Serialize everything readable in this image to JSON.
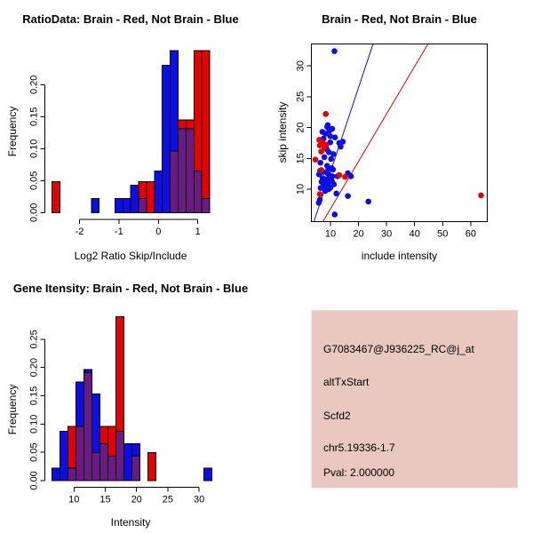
{
  "colors": {
    "red": "#e60000",
    "blue": "#0d0de6",
    "overlap": "#6a1b82",
    "axis": "#000000",
    "info_bg": "#e9c8c1",
    "black": "#000000",
    "pval_red": "#dd3333"
  },
  "chart_data": [
    {
      "type": "bar",
      "panel": "top-left",
      "title": "RatioData: Brain - Red, Not Brain - Blue",
      "xlabel": "Log2 Ratio Skip/Include",
      "ylabel": "Frequency",
      "bin_width": 0.2,
      "xlim": [
        -2.86,
        1.46
      ],
      "ylim": [
        0,
        0.253
      ],
      "x_ticks": [
        {
          "v": -2,
          "label": "-2"
        },
        {
          "v": -1,
          "label": "-1"
        },
        {
          "v": 0,
          "label": "0"
        },
        {
          "v": 1,
          "label": "1"
        }
      ],
      "y_ticks": [
        {
          "v": 0,
          "label": "0.00"
        },
        {
          "v": 0.05,
          "label": "0.05"
        },
        {
          "v": 0.1,
          "label": "0.10"
        },
        {
          "v": 0.15,
          "label": "0.15"
        },
        {
          "v": 0.2,
          "label": "0.20"
        }
      ],
      "series": [
        {
          "name": "Brain",
          "color_key": "red",
          "bars": [
            [
              -2.7,
              0.048
            ],
            [
              -0.5,
              0.048
            ],
            [
              -0.3,
              0.048
            ],
            [
              0.3,
              0.096
            ],
            [
              0.5,
              0.145
            ],
            [
              0.7,
              0.145
            ],
            [
              0.9,
              0.253
            ],
            [
              1.1,
              0.253
            ]
          ]
        },
        {
          "name": "Not Brain",
          "color_key": "blue",
          "bars": [
            [
              -1.7,
              0.022
            ],
            [
              -1.1,
              0.022
            ],
            [
              -0.9,
              0.022
            ],
            [
              -0.7,
              0.043
            ],
            [
              -0.5,
              0.022
            ],
            [
              -0.1,
              0.065
            ],
            [
              0.1,
              0.23
            ],
            [
              0.3,
              0.253
            ],
            [
              0.5,
              0.131
            ],
            [
              0.7,
              0.131
            ],
            [
              0.9,
              0.065
            ],
            [
              1.1,
              0.022
            ]
          ]
        },
        {
          "name": "Overlap",
          "color_key": "overlap",
          "bars": [
            [
              -0.5,
              0.022
            ],
            [
              0.3,
              0.096
            ],
            [
              0.5,
              0.131
            ],
            [
              0.7,
              0.131
            ],
            [
              0.9,
              0.065
            ],
            [
              1.1,
              0.022
            ]
          ]
        }
      ]
    },
    {
      "type": "scatter",
      "panel": "top-right",
      "title": "Brain - Red, Not Brain - Blue",
      "xlabel": "include intensity",
      "ylabel": "skip intensity",
      "xlim": [
        3.2,
        66.5
      ],
      "ylim": [
        4.7,
        33.6
      ],
      "x_ticks": [
        {
          "v": 10,
          "label": "10"
        },
        {
          "v": 20,
          "label": "20"
        },
        {
          "v": 30,
          "label": "30"
        },
        {
          "v": 40,
          "label": "40"
        },
        {
          "v": 50,
          "label": "50"
        },
        {
          "v": 60,
          "label": "60"
        }
      ],
      "y_ticks": [
        {
          "v": 10,
          "label": "10"
        },
        {
          "v": 15,
          "label": "15"
        },
        {
          "v": 20,
          "label": "20"
        },
        {
          "v": 25,
          "label": "25"
        },
        {
          "v": 30,
          "label": "30"
        }
      ],
      "series": [
        {
          "name": "Not Brain",
          "color_key": "blue",
          "points": [
            [
              11.4,
              32.4
            ],
            [
              9.0,
              20.4
            ],
            [
              8.8,
              20.1
            ],
            [
              10.6,
              19.8
            ],
            [
              9.6,
              19.5
            ],
            [
              7.1,
              19.3
            ],
            [
              8.2,
              19.0
            ],
            [
              9.9,
              18.6
            ],
            [
              11.6,
              18.4
            ],
            [
              7.5,
              18.2
            ],
            [
              14.4,
              17.7
            ],
            [
              9.9,
              17.6
            ],
            [
              13.1,
              17.5
            ],
            [
              13.6,
              16.9
            ],
            [
              8.6,
              16.5
            ],
            [
              9.4,
              16.0
            ],
            [
              11.0,
              15.7
            ],
            [
              7.8,
              15.2
            ],
            [
              10.2,
              14.9
            ],
            [
              6.4,
              14.3
            ],
            [
              8.8,
              13.8
            ],
            [
              10.4,
              13.4
            ],
            [
              9.2,
              13.3
            ],
            [
              10.9,
              13.2
            ],
            [
              6.3,
              13.0
            ],
            [
              7.4,
              12.8
            ],
            [
              8.9,
              12.6
            ],
            [
              5.9,
              12.4
            ],
            [
              9.7,
              12.2
            ],
            [
              10.7,
              12.1
            ],
            [
              12.5,
              12.1
            ],
            [
              17.3,
              12.1
            ],
            [
              16.2,
              12.6
            ],
            [
              7.2,
              11.8
            ],
            [
              8.4,
              11.6
            ],
            [
              9.5,
              11.5
            ],
            [
              10.5,
              11.3
            ],
            [
              6.8,
              11.2
            ],
            [
              8.0,
              11.0
            ],
            [
              9.0,
              10.9
            ],
            [
              11.2,
              10.8
            ],
            [
              7.6,
              10.6
            ],
            [
              8.8,
              10.4
            ],
            [
              10.0,
              10.3
            ],
            [
              6.5,
              10.2
            ],
            [
              9.3,
              10.0
            ],
            [
              8.1,
              9.7
            ],
            [
              12.1,
              9.3
            ],
            [
              6.2,
              8.3
            ],
            [
              16.2,
              8.9
            ],
            [
              23.5,
              8.0
            ],
            [
              5.8,
              7.8
            ],
            [
              11.5,
              5.9
            ]
          ]
        },
        {
          "name": "Brain",
          "color_key": "red",
          "points": [
            [
              8.3,
              22.2
            ],
            [
              6.0,
              18.0
            ],
            [
              7.2,
              17.6
            ],
            [
              8.4,
              17.2
            ],
            [
              6.2,
              17.1
            ],
            [
              7.8,
              16.8
            ],
            [
              6.7,
              16.1
            ],
            [
              4.6,
              14.8
            ],
            [
              6.7,
              13.1
            ],
            [
              13.1,
              12.3
            ],
            [
              15.2,
              12.0
            ],
            [
              6.2,
              9.2
            ],
            [
              63.7,
              9.0
            ]
          ]
        }
      ],
      "lines": [
        {
          "color_key": "blue",
          "from": [
            4.06,
            4.7
          ],
          "to": [
            25.2,
            33.6
          ]
        },
        {
          "color_key": "red",
          "from": [
            7.24,
            4.7
          ],
          "to": [
            44.8,
            33.6
          ]
        }
      ]
    },
    {
      "type": "bar",
      "panel": "bottom-left",
      "title": "Gene Itensity: Brain - Red, Not Brain - Blue",
      "xlabel": "Intensity",
      "ylabel": "Frequency",
      "bin_width": 1.28,
      "xlim": [
        5.4,
        33.1
      ],
      "ylim": [
        0,
        0.29
      ],
      "x_ticks": [
        {
          "v": 10,
          "label": "10"
        },
        {
          "v": 15,
          "label": "15"
        },
        {
          "v": 20,
          "label": "20"
        },
        {
          "v": 25,
          "label": "25"
        },
        {
          "v": 30,
          "label": "30"
        }
      ],
      "y_ticks": [
        {
          "v": 0,
          "label": "0.00"
        },
        {
          "v": 0.05,
          "label": "0.05"
        },
        {
          "v": 0.1,
          "label": "0.10"
        },
        {
          "v": 0.15,
          "label": "0.15"
        },
        {
          "v": 0.2,
          "label": "0.20"
        },
        {
          "v": 0.25,
          "label": "0.25"
        }
      ],
      "series": [
        {
          "name": "Brain",
          "color_key": "red",
          "bars": [
            [
              9.01,
              0.096
            ],
            [
              10.29,
              0.096
            ],
            [
              11.57,
              0.191
            ],
            [
              12.85,
              0.049
            ],
            [
              14.13,
              0.096
            ],
            [
              15.41,
              0.096
            ],
            [
              16.69,
              0.29
            ],
            [
              19.25,
              0.043
            ],
            [
              21.81,
              0.049
            ]
          ]
        },
        {
          "name": "Not Brain",
          "color_key": "blue",
          "bars": [
            [
              6.45,
              0.022
            ],
            [
              7.73,
              0.087
            ],
            [
              9.01,
              0.022
            ],
            [
              10.29,
              0.174
            ],
            [
              11.57,
              0.196
            ],
            [
              12.85,
              0.153
            ],
            [
              14.13,
              0.065
            ],
            [
              15.41,
              0.043
            ],
            [
              16.69,
              0.087
            ],
            [
              17.97,
              0.065
            ],
            [
              19.25,
              0.065
            ],
            [
              30.77,
              0.022
            ]
          ]
        },
        {
          "name": "Overlap",
          "color_key": "overlap",
          "bars": [
            [
              9.01,
              0.022
            ],
            [
              10.29,
              0.096
            ],
            [
              11.57,
              0.191
            ],
            [
              12.85,
              0.049
            ],
            [
              14.13,
              0.065
            ],
            [
              15.41,
              0.043
            ],
            [
              16.69,
              0.087
            ],
            [
              19.25,
              0.043
            ]
          ]
        }
      ]
    }
  ],
  "info": {
    "lines": [
      {
        "text": "G7083467@J936225_RC@j_at",
        "color": "#000000"
      },
      {
        "text": "altTxStart",
        "color": "#000000"
      },
      {
        "text": "Scfd2",
        "color": "#000000"
      },
      {
        "text": "chr5.19336-1.7",
        "color": "#000000"
      },
      {
        "text": "Pval: 2.000000",
        "color": "#dd3333"
      }
    ]
  }
}
